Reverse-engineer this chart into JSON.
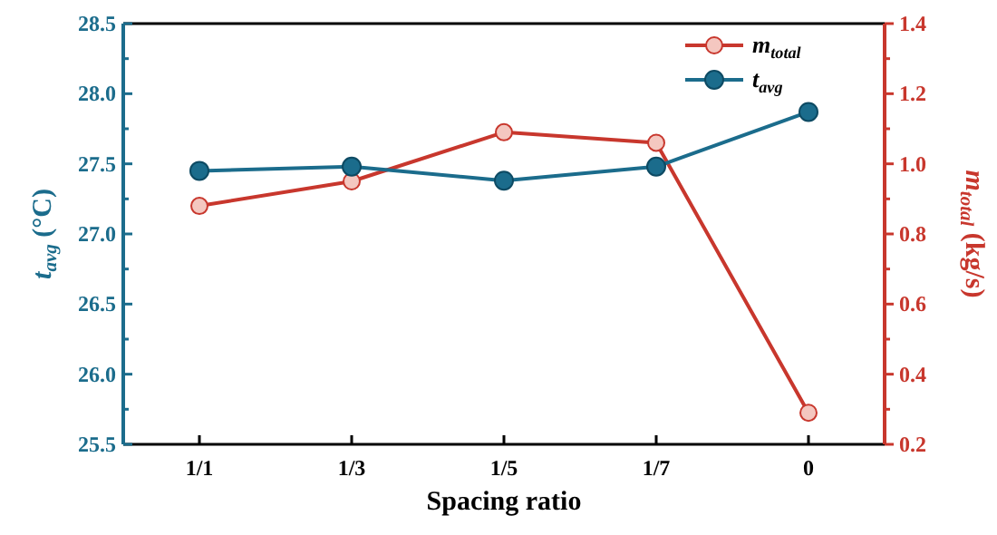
{
  "chart_data": {
    "type": "line",
    "xlabel": "Spacing ratio",
    "ylabel": "t$_{avg}$ (°C)",
    "y2label": "m$_{total}$ (kg/s)",
    "categories": [
      "1/1",
      "1/3",
      "1/5",
      "1/7",
      "0"
    ],
    "series": [
      {
        "name": "m$_{total}$",
        "color": "#c8372d",
        "axis": "y2",
        "marker": "circle",
        "values": [
          0.88,
          0.95,
          1.09,
          1.06,
          0.29
        ]
      },
      {
        "name": "t$_{avg}$",
        "color": "#1b6c8c",
        "marker": "circle",
        "values": [
          27.45,
          27.48,
          27.38,
          27.48,
          27.87
        ]
      }
    ],
    "ylim": [
      25.5,
      28.5
    ],
    "yticks": [
      25.5,
      {
        "value": 25.75,
        "label": null
      },
      {
        "value": 26,
        "label": "26.0"
      },
      {
        "value": 26.25,
        "label": null
      },
      26.5,
      {
        "value": 26.75,
        "label": null
      },
      {
        "value": 27,
        "label": "27.0"
      },
      {
        "value": 27.25,
        "label": null
      },
      27.5,
      {
        "value": 27.75,
        "label": null
      },
      {
        "value": 28,
        "label": "28.0"
      },
      {
        "value": 28.25,
        "label": null
      },
      28.5
    ],
    "y2lim": [
      0.2,
      1.4
    ],
    "y2ticks": [
      0.2,
      {
        "value": 0.3,
        "label": null
      },
      0.4,
      {
        "value": 0.5,
        "label": null
      },
      0.6,
      {
        "value": 0.7,
        "label": null
      },
      0.8,
      {
        "value": 0.9,
        "label": null
      },
      {
        "value": 1,
        "label": "1.0"
      },
      {
        "value": 1.1,
        "label": null
      },
      1.2,
      {
        "value": 1.3,
        "label": null
      },
      1.4
    ],
    "legend": "top right",
    "grid": false,
    "line_style": "solid"
  }
}
